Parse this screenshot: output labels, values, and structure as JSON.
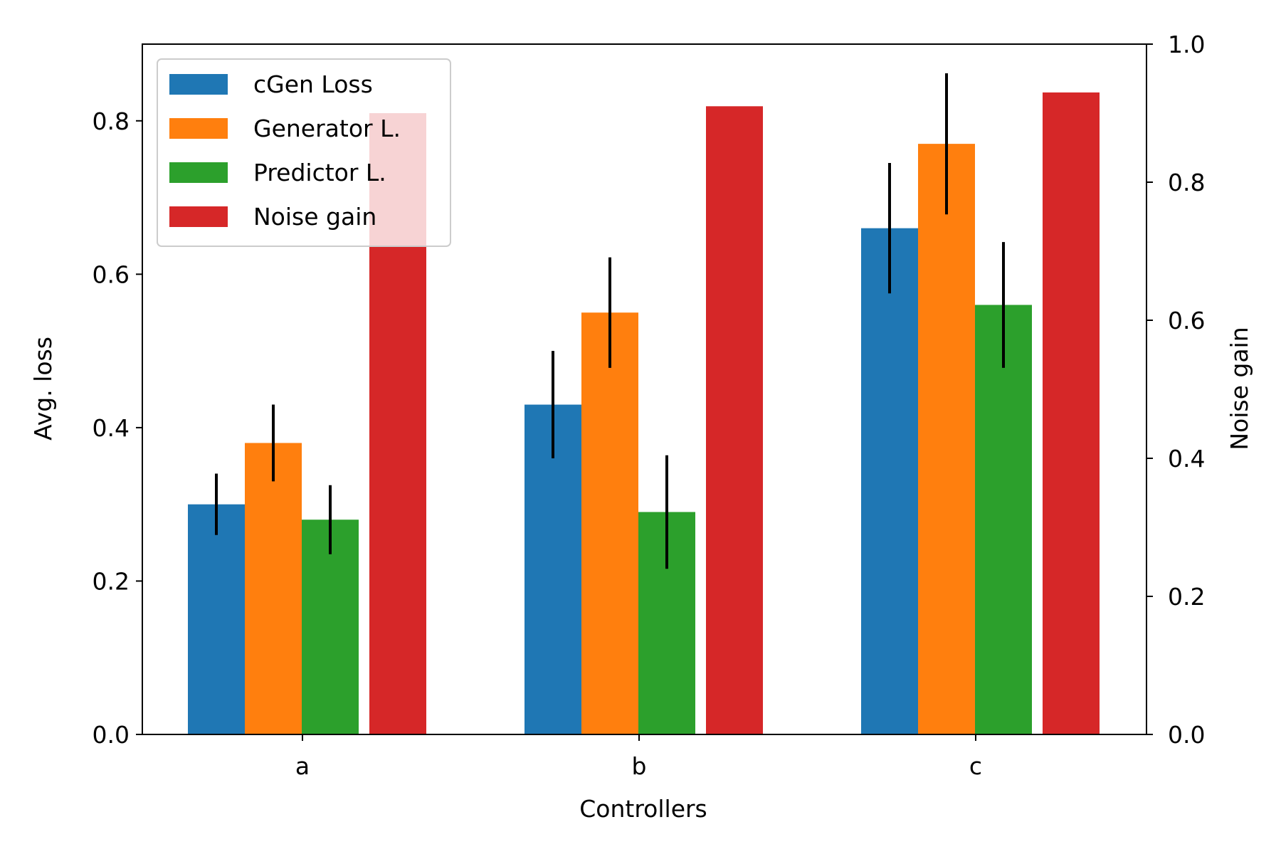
{
  "chart_data": {
    "type": "bar",
    "title": "",
    "xlabel": "Controllers",
    "ylabel": "Avg. loss",
    "y2label": "Noise gain",
    "categories": [
      "a",
      "b",
      "c"
    ],
    "ylim": [
      0,
      0.9
    ],
    "y2lim": [
      0,
      1.0
    ],
    "yticks": [
      0.0,
      0.2,
      0.4,
      0.6,
      0.8
    ],
    "y2ticks": [
      0.0,
      0.2,
      0.4,
      0.6,
      0.8,
      1.0
    ],
    "grid": false,
    "legend_position": "top-left",
    "series": [
      {
        "name": "cGen Loss",
        "axis": "left",
        "color": "#1f77b4",
        "values": [
          0.3,
          0.43,
          0.66
        ],
        "errors": [
          0.04,
          0.07,
          0.085
        ]
      },
      {
        "name": "Generator L.",
        "axis": "left",
        "color": "#ff7f0e",
        "values": [
          0.38,
          0.55,
          0.77
        ],
        "errors": [
          0.05,
          0.072,
          0.092
        ]
      },
      {
        "name": "Predictor L.",
        "axis": "left",
        "color": "#2ca02c",
        "values": [
          0.28,
          0.29,
          0.56
        ],
        "errors": [
          0.045,
          0.074,
          0.082
        ]
      },
      {
        "name": "Noise gain",
        "axis": "right",
        "color": "#d62728",
        "values": [
          0.9,
          0.91,
          0.93
        ],
        "errors": null
      }
    ]
  }
}
